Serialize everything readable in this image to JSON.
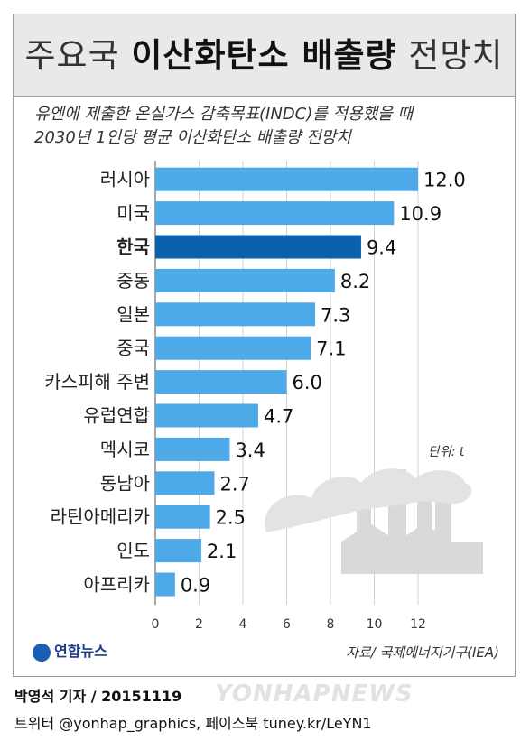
{
  "title": {
    "prefix": "주요국",
    "bold": "이산화탄소 배출량",
    "suffix": "전망치"
  },
  "subtitle_lines": [
    "유엔에 제출한 온실가스 감축목표(INDC)를 적용했을 때",
    "2030년 1인당 평균 이산화탄소 배출량 전망치"
  ],
  "unit_label": "단위: t",
  "source": "자료/ 국제에너지기구(IEA)",
  "logo_text": "연합뉴스",
  "credit_line1": "박영석 기자 / 20151119",
  "credit_line2": "트위터 @yonhap_graphics, 페이스북 tuney.kr/LeYN1",
  "watermark": "YONHAPNEWS",
  "colors": {
    "bar": "#4ea9e8",
    "highlight": "#0a62ad",
    "grid": "#d0d0d0",
    "icon": "#d9d9d9"
  },
  "chart_data": {
    "type": "bar",
    "orientation": "horizontal",
    "categories": [
      "러시아",
      "미국",
      "한국",
      "중동",
      "일본",
      "중국",
      "카스피해 주변",
      "유럽연합",
      "멕시코",
      "동남아",
      "라틴아메리카",
      "인도",
      "아프리카"
    ],
    "values": [
      12.0,
      10.9,
      9.4,
      8.2,
      7.3,
      7.1,
      6.0,
      4.7,
      3.4,
      2.7,
      2.5,
      2.1,
      0.9
    ],
    "value_labels": [
      "12.0",
      "10.9",
      "9.4",
      "8.2",
      "7.3",
      "7.1",
      "6.0",
      "4.7",
      "3.4",
      "2.7",
      "2.5",
      "2.1",
      "0.9"
    ],
    "highlight": "한국",
    "xlim": [
      0,
      12
    ],
    "xticks": [
      0,
      2,
      4,
      6,
      8,
      10,
      12
    ],
    "grid": true
  }
}
